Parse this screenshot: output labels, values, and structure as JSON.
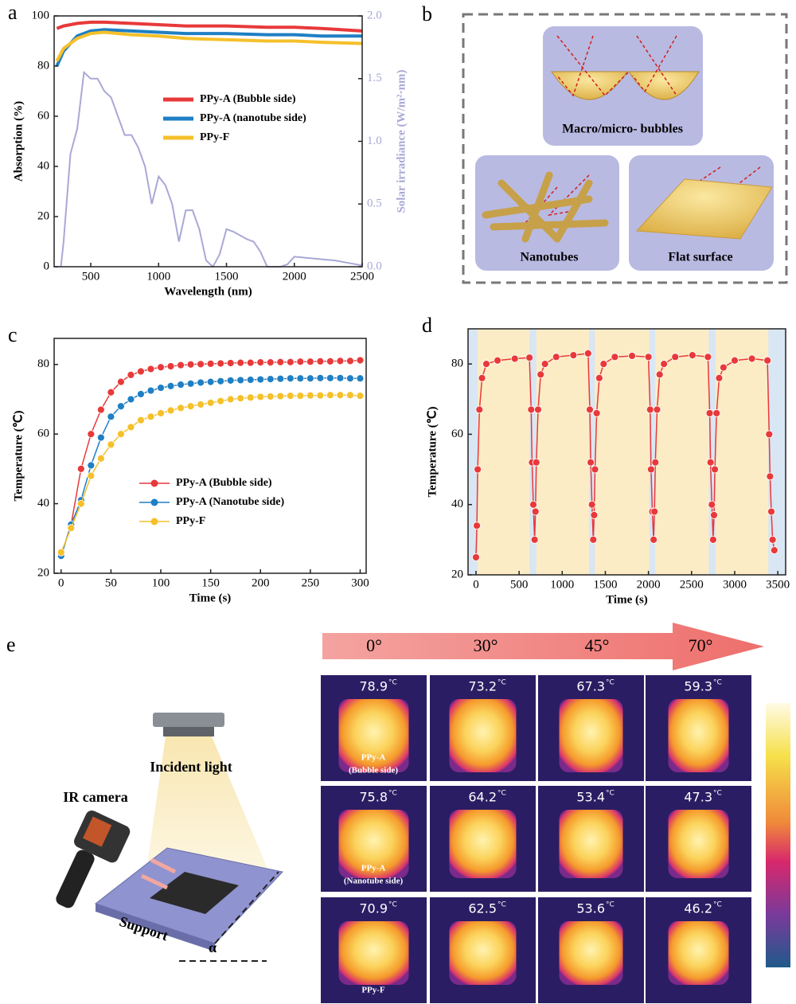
{
  "chart_data": [
    {
      "type": "line",
      "label": "a",
      "xlabel": "Wavelength (nm)",
      "ylabel": "Absorption (%)",
      "y2label": "Solar irradiance (W/m²·nm)",
      "x": [
        250,
        300,
        400,
        500,
        600,
        800,
        1000,
        1200,
        1500,
        1800,
        2000,
        2200,
        2500
      ],
      "series": [
        {
          "name": "PPy-A (Bubble side)",
          "color": "#e8393a",
          "values": [
            95,
            96,
            97,
            97.5,
            97.5,
            97,
            96.5,
            96,
            96,
            95.5,
            95.5,
            95,
            94
          ]
        },
        {
          "name": "PPy-A (nanotube side)",
          "color": "#1f7fc4",
          "values": [
            80,
            86,
            92,
            94,
            94.5,
            94,
            93.5,
            93,
            93,
            92.5,
            92.5,
            92,
            92
          ]
        },
        {
          "name": "PPy-F",
          "color": "#f5c02a",
          "values": [
            82,
            87,
            91,
            93,
            93.5,
            92.5,
            92,
            91,
            90.5,
            90,
            90,
            89.5,
            89
          ]
        },
        {
          "axis": "y2",
          "color": "#a9a8d6",
          "x": [
            280,
            300,
            350,
            400,
            450,
            500,
            550,
            600,
            650,
            700,
            750,
            800,
            850,
            900,
            950,
            1000,
            1050,
            1100,
            1150,
            1200,
            1250,
            1300,
            1350,
            1400,
            1450,
            1500,
            1550,
            1600,
            1650,
            1700,
            1750,
            1800,
            1850,
            1900,
            1950,
            2000,
            2100,
            2200,
            2300,
            2400,
            2500
          ],
          "values": [
            0,
            0.2,
            0.9,
            1.1,
            1.55,
            1.5,
            1.5,
            1.4,
            1.35,
            1.2,
            1.05,
            1.05,
            0.95,
            0.8,
            0.5,
            0.72,
            0.65,
            0.5,
            0.2,
            0.45,
            0.45,
            0.3,
            0.05,
            0,
            0.1,
            0.3,
            0.28,
            0.25,
            0.22,
            0.2,
            0.12,
            0,
            0,
            0,
            0.02,
            0.08,
            0.07,
            0.06,
            0.05,
            0.03,
            0.01
          ]
        }
      ],
      "xlim": [
        230,
        2500
      ],
      "xticks": [
        500,
        1000,
        1500,
        2000,
        2500
      ],
      "ylim": [
        0,
        100
      ],
      "yticks": [
        0,
        20,
        40,
        60,
        80,
        100
      ],
      "y2lim": [
        0,
        2
      ],
      "y2ticks": [
        {
          "value": 0,
          "label": "0.0"
        },
        {
          "value": 0.5,
          "label": "0.5"
        },
        {
          "value": 1,
          "label": "1.0"
        },
        {
          "value": 1.5,
          "label": "1.5"
        },
        {
          "value": 2,
          "label": "2.0"
        }
      ]
    },
    {
      "type": "line",
      "markers": true,
      "label": "c",
      "xlabel": "Time (s)",
      "ylabel": "Temperature (℃)",
      "x": [
        0,
        10,
        20,
        30,
        40,
        50,
        60,
        70,
        80,
        90,
        100,
        110,
        120,
        130,
        140,
        150,
        160,
        170,
        180,
        190,
        200,
        210,
        220,
        230,
        240,
        250,
        260,
        270,
        280,
        290,
        300
      ],
      "series": [
        {
          "name": "PPy-A (Bubble side)",
          "color": "#e8393a",
          "values": [
            25,
            34,
            50,
            60,
            67,
            72,
            75,
            77,
            78,
            78.7,
            79.2,
            79.5,
            79.8,
            80,
            80.1,
            80.2,
            80.3,
            80.4,
            80.5,
            80.5,
            80.6,
            80.6,
            80.7,
            80.7,
            80.8,
            80.8,
            80.9,
            80.9,
            81,
            81,
            81.2
          ]
        },
        {
          "name": "PPy-A (Nanotube side)",
          "color": "#1f7fc4",
          "values": [
            25,
            34,
            41,
            51,
            59,
            65,
            68,
            70,
            71.5,
            72.5,
            73.3,
            73.8,
            74.2,
            74.5,
            74.8,
            75,
            75.2,
            75.4,
            75.5,
            75.6,
            75.7,
            75.8,
            75.9,
            76,
            76,
            76,
            76.1,
            76.1,
            76.1,
            76,
            76
          ]
        },
        {
          "name": "PPy-F",
          "color": "#f5c02a",
          "values": [
            26,
            33,
            40,
            48,
            53,
            57,
            60,
            62,
            64,
            65,
            66,
            66.8,
            67.5,
            68,
            68.5,
            69,
            69.5,
            70,
            70.3,
            70.5,
            70.7,
            70.8,
            70.9,
            71,
            71,
            71.1,
            71.1,
            71.2,
            71.2,
            71.2,
            71
          ]
        }
      ],
      "xlim": [
        -7,
        306
      ],
      "xticks": [
        0,
        50,
        100,
        150,
        200,
        250,
        300
      ],
      "ylim": [
        20,
        87.5
      ],
      "yticks": [
        20,
        40,
        60,
        80
      ]
    },
    {
      "type": "line",
      "markers": true,
      "label": "d",
      "xlabel": "Time (s)",
      "ylabel": "Temperature (℃)",
      "background": "#d9e6f3",
      "band_color": "#fcecc6",
      "light_on": [
        [
          20,
          620
        ],
        [
          700,
          1310
        ],
        [
          1380,
          2010
        ],
        [
          2080,
          2700
        ],
        [
          2780,
          3390
        ]
      ],
      "x": [
        0,
        10,
        20,
        40,
        70,
        120,
        250,
        450,
        620,
        640,
        650,
        665,
        680,
        690,
        700,
        720,
        750,
        800,
        930,
        1130,
        1300,
        1320,
        1330,
        1345,
        1360,
        1370,
        1380,
        1400,
        1430,
        1480,
        1610,
        1810,
        2000,
        2020,
        2030,
        2045,
        2060,
        2070,
        2080,
        2100,
        2130,
        2180,
        2310,
        2510,
        2690,
        2710,
        2720,
        2735,
        2750,
        2760,
        2770,
        2790,
        2820,
        2870,
        3000,
        3200,
        3380,
        3400,
        3410,
        3425,
        3440,
        3460
      ],
      "series": [
        {
          "color": "#e8393a",
          "values": [
            25,
            34,
            50,
            67,
            76,
            80,
            81,
            81.5,
            81.8,
            67,
            52,
            40,
            30,
            38,
            52,
            67,
            77,
            80,
            82,
            82.5,
            83,
            67,
            52,
            40,
            30,
            37,
            50,
            66,
            76,
            80,
            82,
            82.3,
            82,
            67,
            50,
            38,
            30,
            38,
            52,
            67,
            77,
            80,
            82,
            82.5,
            82,
            66,
            52,
            40,
            30,
            37,
            50,
            66,
            76,
            79,
            81,
            81.5,
            81,
            60,
            48,
            38,
            30,
            27
          ]
        }
      ],
      "xlim": [
        -92,
        3591
      ],
      "xticks": [
        0,
        500,
        1000,
        1500,
        2000,
        2500,
        3000,
        3500
      ],
      "ylim": [
        20,
        90
      ],
      "yticks": [
        20,
        40,
        60,
        80
      ]
    }
  ],
  "panel_b": {
    "label": "b",
    "labels": [
      "Macro/micro- bubbles",
      "Nanotubes",
      "Flat surface"
    ]
  },
  "panel_e": {
    "label": "e",
    "angles": [
      "0°",
      "30°",
      "45°",
      "70°"
    ],
    "samples": [
      "PPy-A",
      "PPy-A",
      "PPy-F"
    ],
    "sample_notes": [
      "(Bubble side)",
      "(Nanotube side)"
    ],
    "temperatures": [
      [
        78.9,
        73.2,
        67.3,
        59.3
      ],
      [
        75.8,
        64.2,
        53.4,
        47.3
      ],
      [
        70.9,
        62.5,
        53.6,
        46.2
      ]
    ],
    "unit": "°C",
    "incident_light": "Incident light",
    "ir_camera": "IR camera",
    "support": "Support",
    "angle_symbol": "α"
  }
}
